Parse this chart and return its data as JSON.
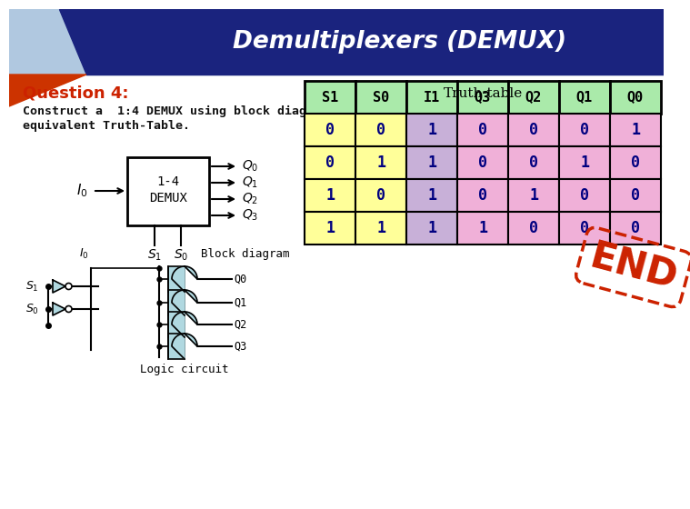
{
  "title": "Demultiplexers (DEMUX)",
  "title_bg_dark": "#1a237e",
  "title_bg_light": "#6090c0",
  "title_color": "#ffffff",
  "question": "Question 4:",
  "question_color": "#cc2200",
  "body_line1": "Construct a  1:4 DEMUX using block diagram. Show the",
  "body_line2": "equivalent Truth-Table.",
  "truth_table_title": "Truth-table",
  "truth_headers": [
    "S1",
    "S0",
    "I1",
    "Q3",
    "Q2",
    "Q1",
    "Q0"
  ],
  "truth_rows": [
    [
      0,
      0,
      1,
      0,
      0,
      0,
      1
    ],
    [
      0,
      1,
      1,
      0,
      0,
      1,
      0
    ],
    [
      1,
      0,
      1,
      0,
      1,
      0,
      0
    ],
    [
      1,
      1,
      1,
      1,
      0,
      0,
      0
    ]
  ],
  "header_color": "#aaeaaa",
  "s_color": "#ffff99",
  "i_color": "#c8b0d8",
  "q_color": "#f0b0d8",
  "data_text_color": "#000080",
  "end_color": "#cc2200",
  "bg_color": "#ffffff",
  "gate_color": "#b0d8e0"
}
